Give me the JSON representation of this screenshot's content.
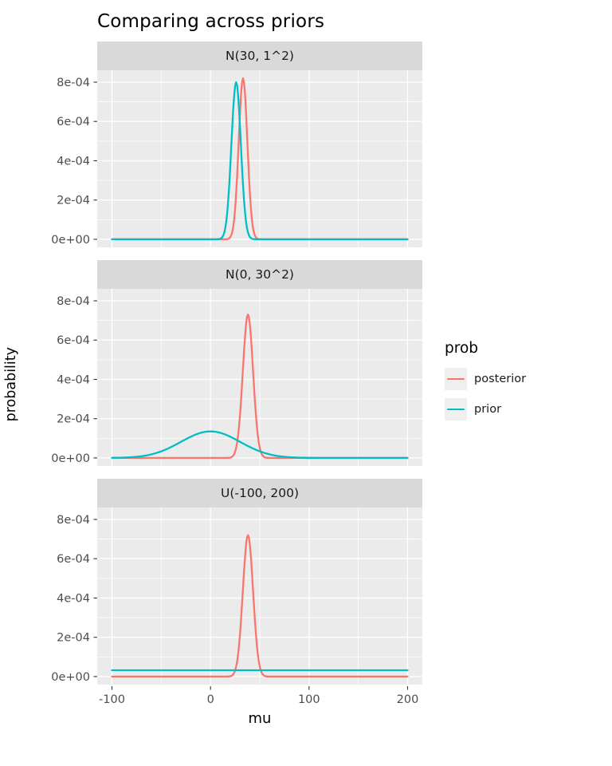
{
  "chart_data": {
    "type": "line",
    "title": "Comparing across priors",
    "xlabel": "mu",
    "ylabel": "probability",
    "x_domain": [
      -100,
      200
    ],
    "x_ticks": [
      -100,
      0,
      100,
      200
    ],
    "x_tick_labels": [
      "-100",
      "0",
      "100",
      "200"
    ],
    "x_minor_ticks": [
      -50,
      50,
      150
    ],
    "y_ticks": [
      0,
      0.0002,
      0.0004,
      0.0006,
      0.0008
    ],
    "y_tick_labels": [
      "0e+00",
      "2e-04",
      "4e-04",
      "6e-04",
      "8e-04"
    ],
    "y_minor_ticks": [
      0.0001,
      0.0003,
      0.0005,
      0.0007
    ],
    "grid": true,
    "legend_position": "right",
    "panel_background": "#EBEBEB",
    "strip_background": "#D9D9D9",
    "legend": {
      "title": "prob",
      "entries": [
        {
          "label": "posterior",
          "color": "#F8766D"
        },
        {
          "label": "prior",
          "color": "#00BFC4"
        }
      ]
    },
    "facets": [
      {
        "label": "N(30, 1^2)",
        "series": [
          {
            "name": "posterior",
            "color": "#F8766D",
            "shape": "gaussian",
            "mean": 33,
            "sd": 4.4,
            "peak": 0.00082
          },
          {
            "name": "prior",
            "color": "#00BFC4",
            "shape": "gaussian",
            "mean": 26,
            "sd": 4.8,
            "peak": 0.0008
          }
        ]
      },
      {
        "label": "N(0, 30^2)",
        "series": [
          {
            "name": "posterior",
            "color": "#F8766D",
            "shape": "gaussian",
            "mean": 38,
            "sd": 5.2,
            "peak": 0.00073
          },
          {
            "name": "prior",
            "color": "#00BFC4",
            "shape": "gaussian",
            "mean": 0,
            "sd": 30,
            "peak": 0.000135
          }
        ]
      },
      {
        "label": "U(-100, 200)",
        "series": [
          {
            "name": "posterior",
            "color": "#F8766D",
            "shape": "gaussian",
            "mean": 38,
            "sd": 5.2,
            "peak": 0.00072
          },
          {
            "name": "prior",
            "color": "#00BFC4",
            "shape": "uniform",
            "value": 3.2e-05
          }
        ]
      }
    ]
  }
}
